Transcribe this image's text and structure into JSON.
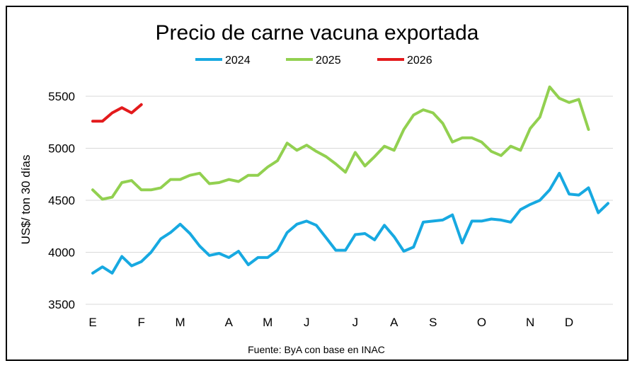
{
  "chart_data": {
    "type": "line",
    "title": "Precio de carne vacuna exportada",
    "ylabel": "US$/ ton 30 días",
    "xlabel": "",
    "source": "Fuente: ByA con base en INAC",
    "ylim": [
      3500,
      5700
    ],
    "yticks": [
      3500,
      4000,
      4500,
      5000,
      5500
    ],
    "grid": true,
    "legend_position": "top",
    "x_range": [
      0,
      53
    ],
    "month_ticks": [
      {
        "label": "E",
        "x": 0
      },
      {
        "label": "F",
        "x": 5
      },
      {
        "label": "M",
        "x": 9
      },
      {
        "label": "A",
        "x": 14
      },
      {
        "label": "M",
        "x": 18
      },
      {
        "label": "J",
        "x": 22
      },
      {
        "label": "J",
        "x": 27
      },
      {
        "label": "A",
        "x": 31
      },
      {
        "label": "S",
        "x": 35
      },
      {
        "label": "O",
        "x": 40
      },
      {
        "label": "N",
        "x": 45
      },
      {
        "label": "D",
        "x": 49
      }
    ],
    "series": [
      {
        "name": "2024",
        "color": "#17a9e1",
        "values": [
          3800,
          3860,
          3800,
          3960,
          3870,
          3910,
          4000,
          4130,
          4190,
          4270,
          4180,
          4060,
          3970,
          3990,
          3950,
          4010,
          3880,
          3950,
          3950,
          4020,
          4190,
          4270,
          4300,
          4260,
          4140,
          4020,
          4020,
          4170,
          4180,
          4120,
          4260,
          4150,
          4010,
          4050,
          4290,
          4300,
          4310,
          4360,
          4090,
          4300,
          4300,
          4320,
          4310,
          4290,
          4410,
          4460,
          4500,
          4600,
          4760,
          4560,
          4550,
          4620,
          4380,
          4470
        ]
      },
      {
        "name": "2025",
        "color": "#92d050",
        "values": [
          4600,
          4510,
          4530,
          4670,
          4690,
          4600,
          4600,
          4620,
          4700,
          4700,
          4740,
          4760,
          4660,
          4670,
          4700,
          4680,
          4740,
          4740,
          4820,
          4880,
          5050,
          4980,
          5030,
          4970,
          4920,
          4850,
          4770,
          4960,
          4830,
          4920,
          5020,
          4980,
          5180,
          5320,
          5370,
          5340,
          5240,
          5060,
          5100,
          5100,
          5060,
          4970,
          4930,
          5020,
          4980,
          5190,
          5300,
          5590,
          5480,
          5440,
          5470,
          5180
        ]
      },
      {
        "name": "2026",
        "color": "#e31a1c",
        "values": [
          5260,
          5260,
          5340,
          5390,
          5340,
          5420
        ]
      }
    ]
  }
}
